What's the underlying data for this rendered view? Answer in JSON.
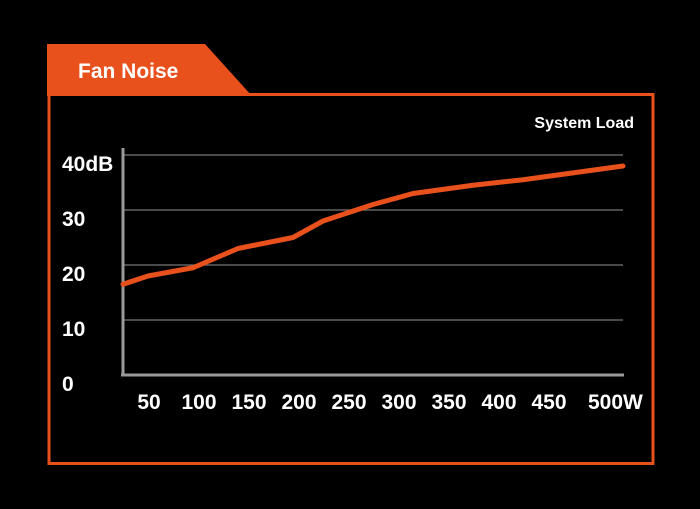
{
  "chart_data": {
    "type": "line",
    "title": "Fan Noise",
    "series_label": "System Load",
    "y_unit": "dB",
    "x_unit": "W",
    "ylim": [
      0,
      40
    ],
    "xlim": [
      0,
      500
    ],
    "y_ticks": [
      0,
      10,
      20,
      30,
      40
    ],
    "y_tick_labels": [
      "0",
      "10",
      "20",
      "30",
      "40dB"
    ],
    "x_ticks": [
      50,
      100,
      150,
      200,
      250,
      300,
      350,
      400,
      450,
      500
    ],
    "x_tick_labels": [
      "50",
      "100",
      "150",
      "200",
      "250",
      "300",
      "350",
      "400",
      "450",
      "500W"
    ],
    "grid": true,
    "series": [
      {
        "name": "System Load",
        "x": [
          0,
          25,
          70,
          115,
          170,
          200,
          250,
          290,
          350,
          400,
          500
        ],
        "values": [
          16.5,
          18,
          19.5,
          23,
          25,
          28,
          31,
          33,
          34.5,
          35.5,
          38
        ]
      }
    ],
    "colors": {
      "accent": "#e8501c",
      "background": "#000000",
      "grid": "#777777",
      "axis": "#9a9a9a",
      "text": "#ffffff"
    }
  }
}
